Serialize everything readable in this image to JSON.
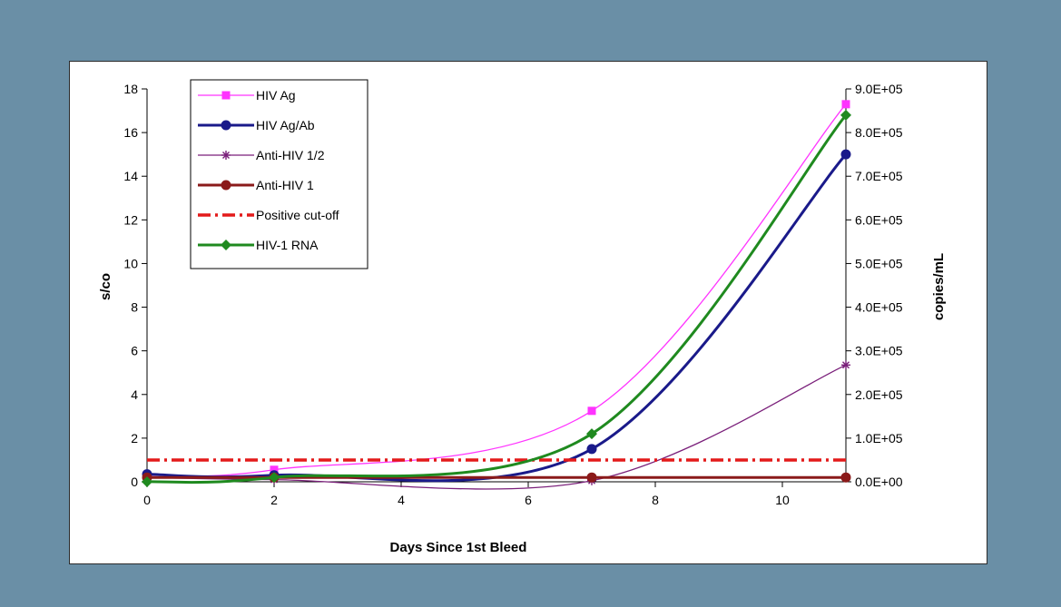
{
  "colors": {
    "background": "#6a8fa6",
    "panel": "#ffffff",
    "hiv_ag": "#ff33ff",
    "hiv_agab": "#1a1a8a",
    "anti_hiv_12": "#7a1f7a",
    "anti_hiv_1": "#8b1a1a",
    "cutoff": "#e31a1a",
    "rna": "#1f8a1f"
  },
  "chart_data": {
    "type": "line",
    "xlabel": "Days Since 1st Bleed",
    "ylabel": "s/co",
    "y2label": "copies/mL",
    "xlim": [
      0,
      11
    ],
    "ylim": [
      0,
      18
    ],
    "y2lim": [
      0,
      900000
    ],
    "xticks": [
      "0",
      "2",
      "4",
      "6",
      "8",
      "10"
    ],
    "yticks": [
      "0",
      "2",
      "4",
      "6",
      "8",
      "10",
      "12",
      "14",
      "16",
      "18"
    ],
    "y2ticks": [
      "0.0E+00",
      "1.0E+05",
      "2.0E+05",
      "3.0E+05",
      "4.0E+05",
      "5.0E+05",
      "6.0E+05",
      "7.0E+05",
      "8.0E+05",
      "9.0E+05"
    ],
    "legend_position": "top-left",
    "grid": false,
    "series": [
      {
        "name": "HIV Ag",
        "axis": "left",
        "marker": "square",
        "x": [
          0,
          2,
          7,
          11
        ],
        "y": [
          0.3,
          0.55,
          3.25,
          17.3
        ]
      },
      {
        "name": "HIV Ag/Ab",
        "axis": "left",
        "marker": "circle",
        "x": [
          0,
          2,
          7,
          11
        ],
        "y": [
          0.35,
          0.3,
          1.5,
          15.0
        ]
      },
      {
        "name": "Anti-HIV 1/2",
        "axis": "left",
        "marker": "star",
        "x": [
          0,
          2,
          7,
          11
        ],
        "y": [
          0.2,
          0.1,
          0.05,
          5.35
        ]
      },
      {
        "name": "Anti-HIV 1",
        "axis": "left",
        "marker": "circle",
        "x": [
          0,
          2,
          7,
          11
        ],
        "y": [
          0.2,
          0.2,
          0.2,
          0.2
        ]
      },
      {
        "name": "Positive cut-off",
        "axis": "left",
        "marker": "none",
        "dashed": true,
        "x": [
          0,
          11
        ],
        "y": [
          1.0,
          1.0
        ]
      },
      {
        "name": "HIV-1 RNA",
        "axis": "right",
        "marker": "diamond",
        "x": [
          0,
          2,
          7,
          11
        ],
        "y": [
          0,
          10000,
          110000,
          840000
        ]
      }
    ]
  }
}
